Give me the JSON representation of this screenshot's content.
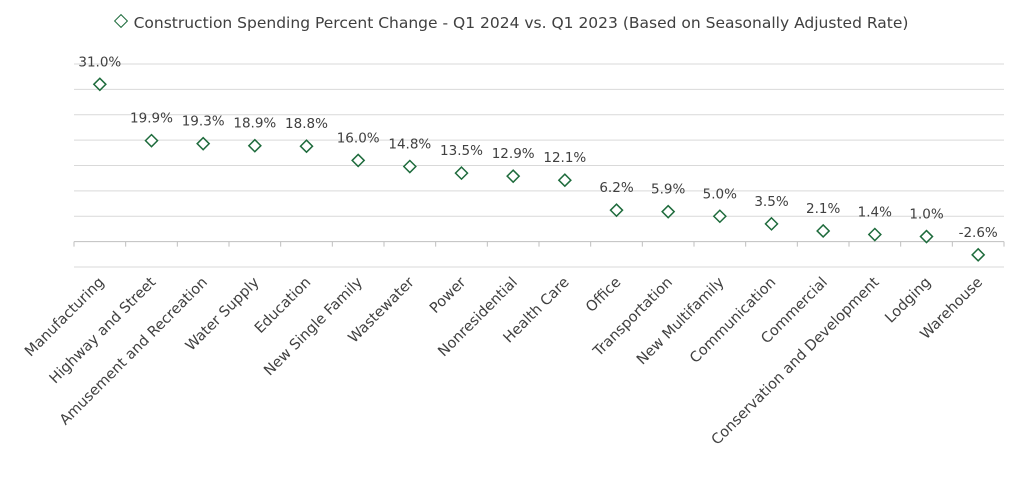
{
  "chart_data": {
    "type": "scatter",
    "title": "",
    "legend": {
      "entries": [
        "Construction Spending Percent Change - Q1 2024 vs. Q1 2023 (Based on Seasonally Adjusted Rate)"
      ],
      "position": "top"
    },
    "xlabel": "",
    "ylabel": "",
    "ylim": [
      -5,
      35
    ],
    "grid": true,
    "y_axis_labels_visible": false,
    "marker": "diamond",
    "series_color": "#1e6b3c",
    "categories": [
      "Manufacturing",
      "Highway and Street",
      "Amusement and Recreation",
      "Water Supply",
      "Education",
      "New Single Family",
      "Wastewater",
      "Power",
      "Nonresidential",
      "Health Care",
      "Office",
      "Transportation",
      "New Multifamily",
      "Communication",
      "Commercial",
      "Conservation and Development",
      "Lodging",
      "Warehouse"
    ],
    "series": [
      {
        "name": "Construction Spending Percent Change - Q1 2024 vs. Q1 2023 (Based on Seasonally Adjusted Rate)",
        "values": [
          31.0,
          19.9,
          19.3,
          18.9,
          18.8,
          16.0,
          14.8,
          13.5,
          12.9,
          12.1,
          6.2,
          5.9,
          5.0,
          3.5,
          2.1,
          1.4,
          1.0,
          -2.6
        ],
        "data_labels": [
          "31.0%",
          "19.9%",
          "19.3%",
          "18.9%",
          "18.8%",
          "16.0%",
          "14.8%",
          "13.5%",
          "12.9%",
          "12.1%",
          "6.2%",
          "5.9%",
          "5.0%",
          "3.5%",
          "2.1%",
          "1.4%",
          "1.0%",
          "-2.6%"
        ]
      }
    ]
  }
}
